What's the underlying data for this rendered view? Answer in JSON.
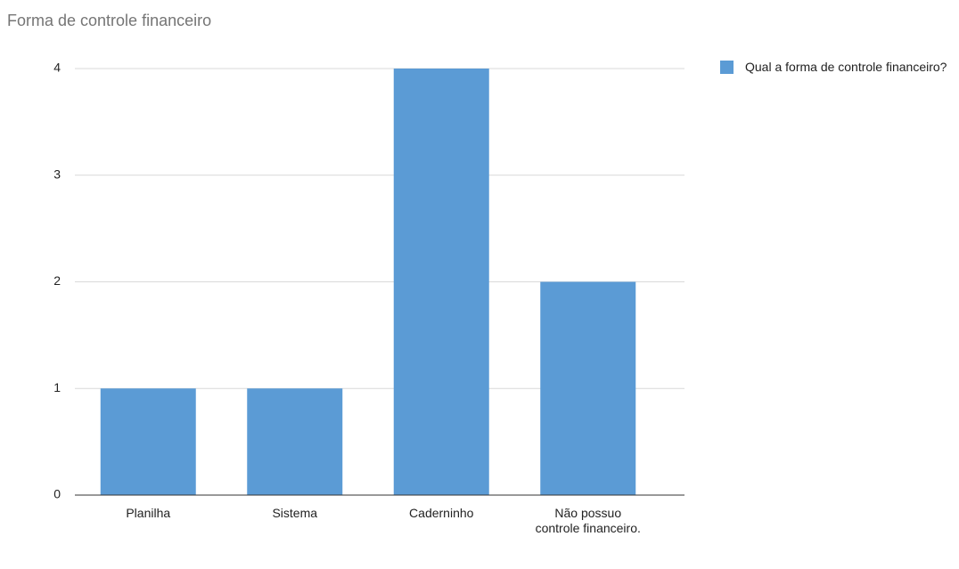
{
  "chart_data": {
    "type": "bar",
    "title": "Forma de controle financeiro",
    "categories": [
      "Planilha",
      "Sistema",
      "Caderninho",
      "Não possuo controle financeiro."
    ],
    "series": [
      {
        "name": "Qual a forma de controle financeiro?",
        "color": "#5b9bd5",
        "values": [
          1,
          1,
          4,
          2
        ]
      }
    ],
    "ylim": [
      0,
      4
    ],
    "yticks": [
      0,
      1,
      2,
      3,
      4
    ],
    "grid": true,
    "legend": "right"
  }
}
